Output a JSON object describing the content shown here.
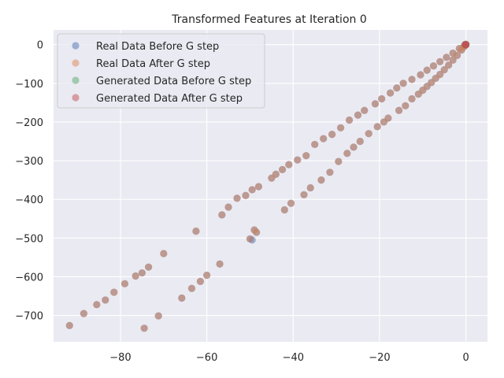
{
  "chart_data": {
    "type": "scatter",
    "title": "Transformed Features at Iteration 0",
    "xlabel": "",
    "ylabel": "",
    "xlim": [
      -95.5,
      5
    ],
    "ylim": [
      -768,
      38
    ],
    "x_ticks": [
      -80,
      -60,
      -40,
      -20,
      0
    ],
    "x_tick_labels": [
      "−80",
      "−60",
      "−40",
      "−20",
      "0"
    ],
    "y_ticks": [
      0,
      -100,
      -200,
      -300,
      -400,
      -500,
      -600,
      -700
    ],
    "y_tick_labels": [
      "0",
      "−100",
      "−200",
      "−300",
      "−400",
      "−500",
      "−600",
      "−700"
    ],
    "grid": true,
    "legend_position": "top-left",
    "style": {
      "axes_background": "#eaeaf2",
      "grid_color": "#ffffff",
      "text_color": "#262626"
    },
    "series": [
      {
        "name": "Real Data Before G step",
        "color": "#4c72b0",
        "points": [
          [
            -91.8,
            -726
          ],
          [
            -74.5,
            -733
          ],
          [
            -71.2,
            -701
          ],
          [
            -65.8,
            -655
          ],
          [
            -63.5,
            -630
          ],
          [
            -61.5,
            -612
          ],
          [
            -57.0,
            -567
          ],
          [
            -49.0,
            -479
          ],
          [
            -50.0,
            -502
          ],
          [
            -49.5,
            -505
          ],
          [
            -48.5,
            -485
          ],
          [
            -42.0,
            -427
          ],
          [
            -40.5,
            -410
          ],
          [
            -37.5,
            -388
          ],
          [
            -36.0,
            -370
          ],
          [
            -33.5,
            -350
          ],
          [
            -31.5,
            -330
          ],
          [
            -29.5,
            -302
          ],
          [
            -27.5,
            -281
          ],
          [
            -26.0,
            -265
          ],
          [
            -24.5,
            -250
          ],
          [
            -22.5,
            -230
          ],
          [
            -20.5,
            -212
          ],
          [
            -19.0,
            -200
          ],
          [
            -18.0,
            -190
          ],
          [
            -15.5,
            -170
          ],
          [
            -14.0,
            -158
          ],
          [
            -12.5,
            -140
          ],
          [
            -11.0,
            -128
          ],
          [
            -10.0,
            -118
          ],
          [
            -9.0,
            -108
          ],
          [
            -8.0,
            -98
          ],
          [
            -7.0,
            -87
          ],
          [
            -6.0,
            -77
          ],
          [
            -5.0,
            -65
          ],
          [
            -4.0,
            -53
          ],
          [
            -3.0,
            -40
          ],
          [
            -2.0,
            -28
          ],
          [
            -1.0,
            -14
          ],
          [
            -0.5,
            -6
          ],
          [
            -88.5,
            -695
          ],
          [
            -85.5,
            -672
          ],
          [
            -83.5,
            -660
          ],
          [
            -81.5,
            -640
          ],
          [
            -79.0,
            -618
          ],
          [
            -76.5,
            -598
          ],
          [
            -75.0,
            -590
          ],
          [
            -73.5,
            -575
          ],
          [
            -70.0,
            -540
          ],
          [
            -62.5,
            -482
          ],
          [
            -60.0,
            -596
          ],
          [
            -56.5,
            -440
          ],
          [
            -55.0,
            -420
          ],
          [
            -53.0,
            -397
          ],
          [
            -51.0,
            -390
          ],
          [
            -49.5,
            -375
          ],
          [
            -48.0,
            -367
          ],
          [
            -45.0,
            -345
          ],
          [
            -44.0,
            -335
          ],
          [
            -42.5,
            -323
          ],
          [
            -41.0,
            -310
          ],
          [
            -39.0,
            -298
          ],
          [
            -37.0,
            -287
          ],
          [
            -35.0,
            -258
          ],
          [
            -33.0,
            -243
          ],
          [
            -31.0,
            -232
          ],
          [
            -29.0,
            -215
          ],
          [
            -27.0,
            -195
          ],
          [
            -25.0,
            -182
          ],
          [
            -23.5,
            -170
          ],
          [
            -21.0,
            -153
          ],
          [
            -19.5,
            -140
          ],
          [
            -17.5,
            -125
          ],
          [
            -16.0,
            -112
          ],
          [
            -14.5,
            -100
          ],
          [
            -12.5,
            -90
          ],
          [
            -10.5,
            -78
          ],
          [
            -9.0,
            -66
          ],
          [
            -7.5,
            -55
          ],
          [
            -6.0,
            -44
          ],
          [
            -4.5,
            -33
          ],
          [
            -3.0,
            -22
          ],
          [
            -1.5,
            -10
          ]
        ]
      },
      {
        "name": "Real Data After G step",
        "color": "#dd8452",
        "points": [
          [
            -91.8,
            -726
          ],
          [
            -74.5,
            -733
          ],
          [
            -71.2,
            -701
          ],
          [
            -65.8,
            -655
          ],
          [
            -63.5,
            -630
          ],
          [
            -61.5,
            -612
          ],
          [
            -57.0,
            -567
          ],
          [
            -49.0,
            -479
          ],
          [
            -50.0,
            -502
          ],
          [
            -48.5,
            -485
          ],
          [
            -42.0,
            -427
          ],
          [
            -40.5,
            -410
          ],
          [
            -37.5,
            -388
          ],
          [
            -36.0,
            -370
          ],
          [
            -33.5,
            -350
          ],
          [
            -31.5,
            -330
          ],
          [
            -29.5,
            -302
          ],
          [
            -27.5,
            -281
          ],
          [
            -26.0,
            -265
          ],
          [
            -24.5,
            -250
          ],
          [
            -22.5,
            -230
          ],
          [
            -20.5,
            -212
          ],
          [
            -19.0,
            -200
          ],
          [
            -18.0,
            -190
          ],
          [
            -15.5,
            -170
          ],
          [
            -14.0,
            -158
          ],
          [
            -12.5,
            -140
          ],
          [
            -11.0,
            -128
          ],
          [
            -10.0,
            -118
          ],
          [
            -9.0,
            -108
          ],
          [
            -8.0,
            -98
          ],
          [
            -7.0,
            -87
          ],
          [
            -6.0,
            -77
          ],
          [
            -5.0,
            -65
          ],
          [
            -4.0,
            -53
          ],
          [
            -3.0,
            -40
          ],
          [
            -2.0,
            -28
          ],
          [
            -1.0,
            -14
          ],
          [
            -0.5,
            -6
          ],
          [
            -88.5,
            -695
          ],
          [
            -85.5,
            -672
          ],
          [
            -83.5,
            -660
          ],
          [
            -81.5,
            -640
          ],
          [
            -79.0,
            -618
          ],
          [
            -76.5,
            -598
          ],
          [
            -75.0,
            -590
          ],
          [
            -73.5,
            -575
          ],
          [
            -70.0,
            -540
          ],
          [
            -62.5,
            -482
          ],
          [
            -60.0,
            -596
          ],
          [
            -56.5,
            -440
          ],
          [
            -55.0,
            -420
          ],
          [
            -53.0,
            -397
          ],
          [
            -51.0,
            -390
          ],
          [
            -49.5,
            -375
          ],
          [
            -48.0,
            -367
          ],
          [
            -45.0,
            -345
          ],
          [
            -44.0,
            -335
          ],
          [
            -42.5,
            -323
          ],
          [
            -41.0,
            -310
          ],
          [
            -39.0,
            -298
          ],
          [
            -37.0,
            -287
          ],
          [
            -35.0,
            -258
          ],
          [
            -33.0,
            -243
          ],
          [
            -31.0,
            -232
          ],
          [
            -29.0,
            -215
          ],
          [
            -27.0,
            -195
          ],
          [
            -25.0,
            -182
          ],
          [
            -23.5,
            -170
          ],
          [
            -21.0,
            -153
          ],
          [
            -19.5,
            -140
          ],
          [
            -17.5,
            -125
          ],
          [
            -16.0,
            -112
          ],
          [
            -14.5,
            -100
          ],
          [
            -12.5,
            -90
          ],
          [
            -10.5,
            -78
          ],
          [
            -9.0,
            -66
          ],
          [
            -7.5,
            -55
          ],
          [
            -6.0,
            -44
          ],
          [
            -4.5,
            -33
          ],
          [
            -3.0,
            -22
          ],
          [
            -1.5,
            -10
          ]
        ]
      },
      {
        "name": "Generated Data Before G step",
        "color": "#55a868",
        "points": [
          [
            0,
            0
          ],
          [
            0,
            -1
          ],
          [
            -0.2,
            0
          ],
          [
            0,
            1
          ]
        ]
      },
      {
        "name": "Generated Data After G step",
        "color": "#c44e52",
        "points": [
          [
            0,
            0
          ],
          [
            0,
            -1
          ],
          [
            -0.2,
            0
          ],
          [
            0,
            1
          ]
        ]
      }
    ]
  }
}
